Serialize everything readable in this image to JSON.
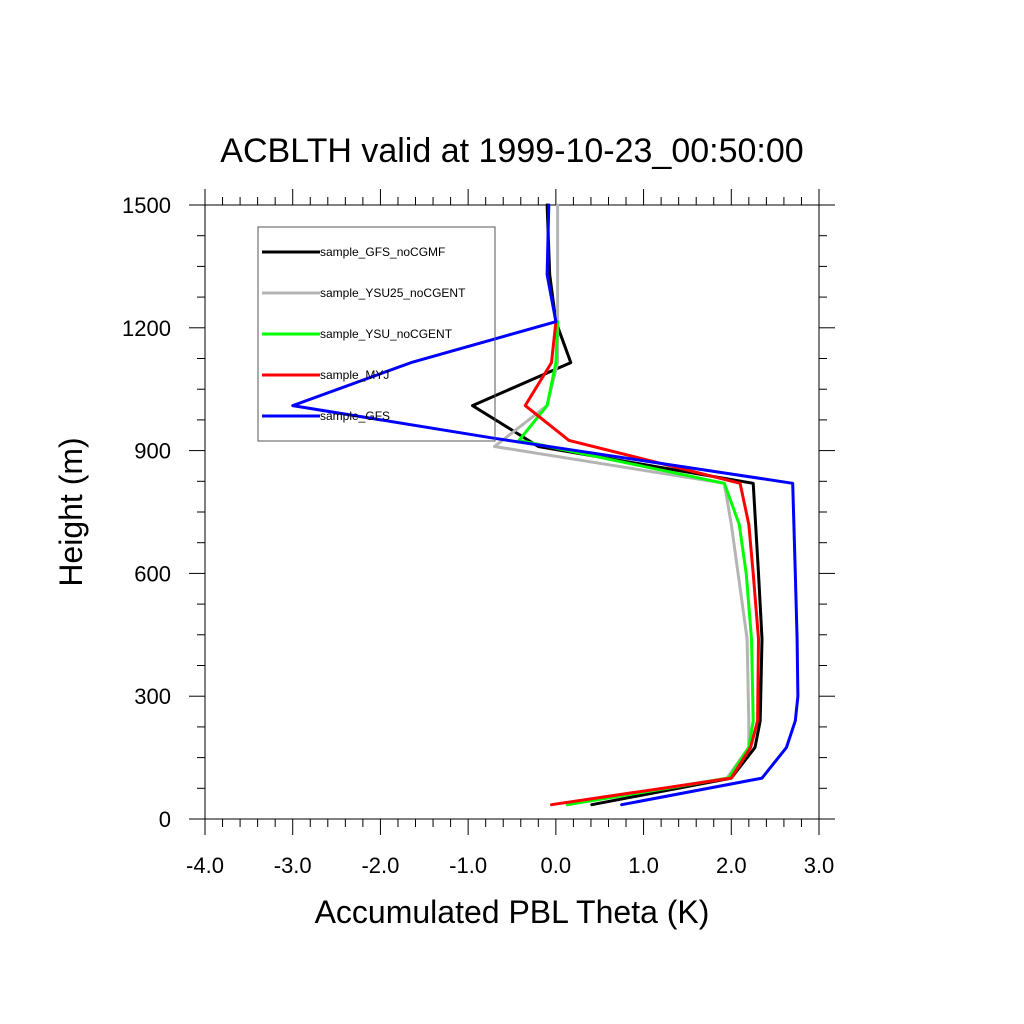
{
  "chart_data": {
    "type": "line",
    "title": "ACBLTH valid at 1999-10-23_00:50:00",
    "xlabel": "Accumulated PBL Theta (K)",
    "ylabel": "Height (m)",
    "xlim": [
      -4.0,
      3.0
    ],
    "ylim": [
      0,
      1500
    ],
    "x_ticks": [
      -4.0,
      -3.0,
      -2.0,
      -1.0,
      0.0,
      1.0,
      2.0,
      3.0
    ],
    "x_tick_labels": [
      "-4.0",
      "-3.0",
      "-2.0",
      "-1.0",
      "0.0",
      "1.0",
      "2.0",
      "3.0"
    ],
    "y_ticks": [
      0,
      300,
      600,
      900,
      1200,
      1500
    ],
    "y_tick_labels": [
      "0",
      "300",
      "600",
      "900",
      "1200",
      "1500"
    ],
    "legend_position": "top-left",
    "grid": false,
    "series": [
      {
        "name": "sample_GFS_noCGMF",
        "color": "#000000",
        "x": [
          0.41,
          2.0,
          2.27,
          2.33,
          2.35,
          2.31,
          2.25,
          -0.2,
          -0.95,
          0.17,
          0.0,
          -0.07,
          -0.1
        ],
        "y": [
          35,
          100,
          175,
          240,
          440,
          600,
          820,
          910,
          1010,
          1115,
          1215,
          1330,
          1500
        ]
      },
      {
        "name": "sample_YSU25_noCGENT",
        "color": "#b4b4b4",
        "x": [
          0.13,
          1.95,
          2.2,
          2.2,
          2.18,
          2.0,
          1.92,
          -0.7,
          -0.1,
          0.02,
          0.02,
          0.02
        ],
        "y": [
          35,
          100,
          175,
          240,
          440,
          720,
          820,
          910,
          1010,
          1115,
          1215,
          1500
        ]
      },
      {
        "name": "sample_YSU_noCGENT",
        "color": "#00ff00",
        "x": [
          0.13,
          1.97,
          2.2,
          2.25,
          2.23,
          2.17,
          2.09,
          1.92,
          -0.42,
          -0.1,
          0.0,
          0.02
        ],
        "y": [
          35,
          100,
          175,
          240,
          440,
          600,
          720,
          820,
          925,
          1010,
          1115,
          1215
        ]
      },
      {
        "name": "sample_MYJ",
        "color": "#ff0000",
        "x": [
          -0.05,
          2.0,
          2.22,
          2.3,
          2.31,
          2.25,
          2.2,
          2.1,
          0.15,
          -0.35,
          -0.05,
          0.0
        ],
        "y": [
          35,
          100,
          175,
          240,
          440,
          600,
          720,
          820,
          925,
          1010,
          1115,
          1215
        ]
      },
      {
        "name": "sample_GFS",
        "color": "#0000ff",
        "x": [
          0.75,
          2.35,
          2.63,
          2.73,
          2.76,
          2.75,
          2.73,
          2.7,
          -0.7,
          -3.0,
          -1.65,
          0.0,
          -0.1,
          -0.08
        ],
        "y": [
          35,
          100,
          175,
          240,
          300,
          440,
          600,
          820,
          930,
          1010,
          1115,
          1215,
          1330,
          1500
        ]
      }
    ]
  }
}
